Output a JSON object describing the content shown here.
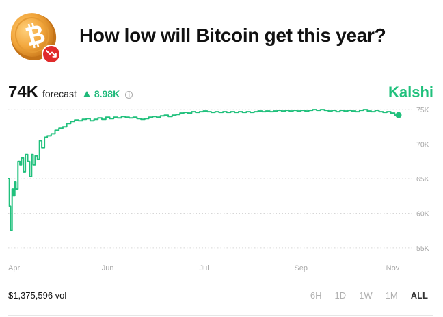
{
  "question": {
    "title": "How low will Bitcoin get this year?"
  },
  "forecast": {
    "value": "74K",
    "label": "forecast",
    "change": "8.98K"
  },
  "brand": "Kalshi",
  "volume": "$1,375,596 vol",
  "range_buttons": [
    "6H",
    "1D",
    "1W",
    "1M",
    "ALL"
  ],
  "active_range": "ALL",
  "colors": {
    "accent": "#20c07c",
    "coin": "#f0a43a",
    "badge": "#e02b2b"
  },
  "icons": [
    "bitcoin-coin-icon",
    "trend-down-icon",
    "triangle-up-icon",
    "info-icon"
  ],
  "chart_data": {
    "type": "line",
    "x_tick_labels": [
      "Apr",
      "Jun",
      "Jul",
      "Sep",
      "Nov"
    ],
    "y_tick_labels": [
      "75K",
      "70K",
      "65K",
      "60K",
      "55K"
    ],
    "y_ticks": [
      75,
      70,
      65,
      60,
      55
    ],
    "ylim": [
      54,
      76
    ],
    "xlim": [
      0,
      100
    ],
    "x_tick_positions": [
      0,
      25.5,
      50.2,
      75,
      98.5
    ],
    "grid": "horizontal-dotted",
    "series": [
      {
        "values": [
          [
            0,
            65
          ],
          [
            0.3,
            61
          ],
          [
            0.6,
            57.5
          ],
          [
            1,
            63.5
          ],
          [
            1.3,
            62.5
          ],
          [
            1.7,
            64.5
          ],
          [
            2,
            63.5
          ],
          [
            2.5,
            67.5
          ],
          [
            3,
            67
          ],
          [
            3.4,
            68
          ],
          [
            3.9,
            66
          ],
          [
            4.4,
            68.5
          ],
          [
            5,
            67.5
          ],
          [
            5.5,
            65.3
          ],
          [
            6,
            68.5
          ],
          [
            6.4,
            67
          ],
          [
            6.9,
            68.3
          ],
          [
            7.5,
            67.8
          ],
          [
            8,
            70.5
          ],
          [
            8.6,
            69.5
          ],
          [
            9.3,
            71
          ],
          [
            10,
            71.2
          ],
          [
            11,
            71.5
          ],
          [
            12,
            72
          ],
          [
            13,
            72.3
          ],
          [
            14,
            72.5
          ],
          [
            15,
            73
          ],
          [
            16,
            73.3
          ],
          [
            17,
            73.5
          ],
          [
            18,
            73.4
          ],
          [
            19,
            73.6
          ],
          [
            20,
            73.7
          ],
          [
            21,
            73.4
          ],
          [
            22,
            73.6
          ],
          [
            23,
            73.8
          ],
          [
            24,
            73.6
          ],
          [
            25,
            73.9
          ],
          [
            26,
            73.7
          ],
          [
            27,
            73.9
          ],
          [
            28,
            73.8
          ],
          [
            29,
            74
          ],
          [
            30,
            73.9
          ],
          [
            31,
            73.8
          ],
          [
            32,
            73.9
          ],
          [
            33,
            73.7
          ],
          [
            34,
            73.6
          ],
          [
            35,
            73.7
          ],
          [
            36,
            73.9
          ],
          [
            37,
            74
          ],
          [
            38,
            73.9
          ],
          [
            39,
            74.1
          ],
          [
            40,
            74.2
          ],
          [
            41,
            74
          ],
          [
            42,
            74.2
          ],
          [
            43,
            74.3
          ],
          [
            44,
            74.5
          ],
          [
            45,
            74.6
          ],
          [
            46,
            74.5
          ],
          [
            47,
            74.7
          ],
          [
            48,
            74.6
          ],
          [
            49,
            74.7
          ],
          [
            50,
            74.8
          ],
          [
            51,
            74.7
          ],
          [
            52,
            74.6
          ],
          [
            53,
            74.7
          ],
          [
            54,
            74.6
          ],
          [
            55,
            74.7
          ],
          [
            56,
            74.6
          ],
          [
            57,
            74.7
          ],
          [
            58,
            74.6
          ],
          [
            59,
            74.7
          ],
          [
            60,
            74.6
          ],
          [
            61,
            74.7
          ],
          [
            62,
            74.6
          ],
          [
            63,
            74.7
          ],
          [
            64,
            74.8
          ],
          [
            65,
            74.7
          ],
          [
            66,
            74.8
          ],
          [
            67,
            74.7
          ],
          [
            68,
            74.8
          ],
          [
            69,
            74.9
          ],
          [
            70,
            74.8
          ],
          [
            71,
            74.9
          ],
          [
            72,
            74.8
          ],
          [
            73,
            74.9
          ],
          [
            74,
            74.8
          ],
          [
            75,
            74.9
          ],
          [
            76,
            74.8
          ],
          [
            77,
            74.9
          ],
          [
            78,
            75
          ],
          [
            79,
            74.9
          ],
          [
            80,
            75
          ],
          [
            81,
            74.9
          ],
          [
            82,
            74.8
          ],
          [
            83,
            74.9
          ],
          [
            84,
            74.7
          ],
          [
            85,
            74.9
          ],
          [
            86,
            74.8
          ],
          [
            87,
            74.9
          ],
          [
            88,
            74.8
          ],
          [
            89,
            74.7
          ],
          [
            90,
            74.9
          ],
          [
            91,
            75
          ],
          [
            92,
            74.8
          ],
          [
            93,
            74.7
          ],
          [
            94,
            74.9
          ],
          [
            95,
            74.7
          ],
          [
            96,
            74.6
          ],
          [
            97,
            74.7
          ],
          [
            98,
            74.5
          ],
          [
            99,
            74.2
          ],
          [
            100,
            74.2
          ]
        ]
      }
    ]
  }
}
